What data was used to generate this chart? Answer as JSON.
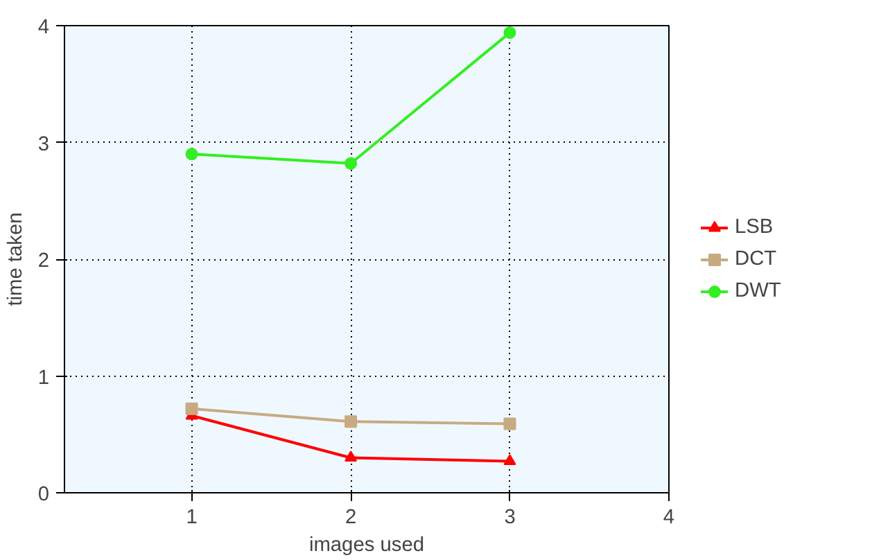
{
  "chart_data": {
    "type": "line",
    "xlabel": "images used",
    "ylabel": "time taken",
    "x": [
      1,
      2,
      3
    ],
    "series": [
      {
        "name": "LSB",
        "color": "#ff0000",
        "marker": "triangle",
        "values": [
          0.66,
          0.3,
          0.27
        ]
      },
      {
        "name": "DCT",
        "color": "#c8aa82",
        "marker": "square",
        "values": [
          0.72,
          0.61,
          0.59
        ]
      },
      {
        "name": "DWT",
        "color": "#33ee22",
        "marker": "circle",
        "values": [
          2.9,
          2.82,
          3.94
        ]
      }
    ],
    "xlim": [
      0.2,
      4
    ],
    "xticks": [
      1,
      2,
      3,
      4
    ],
    "ylim": [
      0,
      4
    ],
    "yticks": [
      0,
      1,
      2,
      3,
      4
    ],
    "grid": true,
    "legend": "right",
    "line_style": "solid"
  }
}
